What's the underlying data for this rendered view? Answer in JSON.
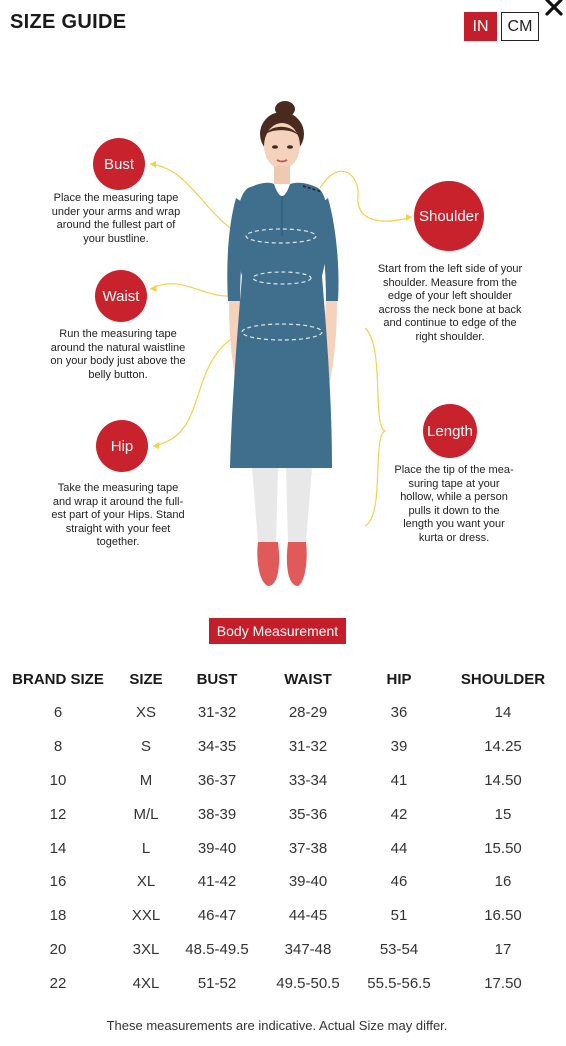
{
  "header": {
    "title": "SIZE GUIDE",
    "units": [
      {
        "label": "IN",
        "active": true
      },
      {
        "label": "CM",
        "active": false
      }
    ],
    "close_icon": "close-icon"
  },
  "measurements": {
    "bust": {
      "label": "Bust",
      "description": "Place the measuring tape under your arms and wrap around the fullest part of your bustline."
    },
    "waist": {
      "label": "Waist",
      "description": "Run the measuring tape around the natural waistline on your body just above the belly button."
    },
    "hip": {
      "label": "Hip",
      "description": "Take the measuring tape and wrap it around the full-est part of your Hips. Stand straight with your feet together."
    },
    "shoulder": {
      "label": "Shoulder",
      "description": "Start from the left side of your shoulder. Measure from the edge of your left shoulder across the neck bone at back and continue to edge of the right shoulder."
    },
    "length": {
      "label": "Length",
      "description": "Place the tip of the mea-suring tape at your hollow, while a person pulls it down to the length you want your kurta or dress."
    }
  },
  "body_measurement_label": "Body Measurement",
  "table": {
    "headers": [
      "BRAND SIZE",
      "SIZE",
      "BUST",
      "WAIST",
      "HIP",
      "SHOULDER"
    ],
    "rows": [
      [
        "6",
        "XS",
        "31-32",
        "28-29",
        "36",
        "14"
      ],
      [
        "8",
        "S",
        "34-35",
        "31-32",
        "39",
        "14.25"
      ],
      [
        "10",
        "M",
        "36-37",
        "33-34",
        "41",
        "14.50"
      ],
      [
        "12",
        "M/L",
        "38-39",
        "35-36",
        "42",
        "15"
      ],
      [
        "14",
        "L",
        "39-40",
        "37-38",
        "44",
        "15.50"
      ],
      [
        "16",
        "XL",
        "41-42",
        "39-40",
        "46",
        "16"
      ],
      [
        "18",
        "XXL",
        "46-47",
        "44-45",
        "51",
        "16.50"
      ],
      [
        "20",
        "3XL",
        "48.5-49.5",
        "347-48",
        "53-54",
        "17"
      ],
      [
        "22",
        "4XL",
        "51-52",
        "49.5-50.5",
        "55.5-56.5",
        "17.50"
      ]
    ]
  },
  "footnote": "These measurements are indicative. Actual Size may differ.",
  "colors": {
    "accent": "#c41e2a",
    "kurta": "#3f6f8c",
    "pants": "#e8e8e8",
    "shoes": "#e05a5a",
    "guide_line": "#f2d24a"
  }
}
